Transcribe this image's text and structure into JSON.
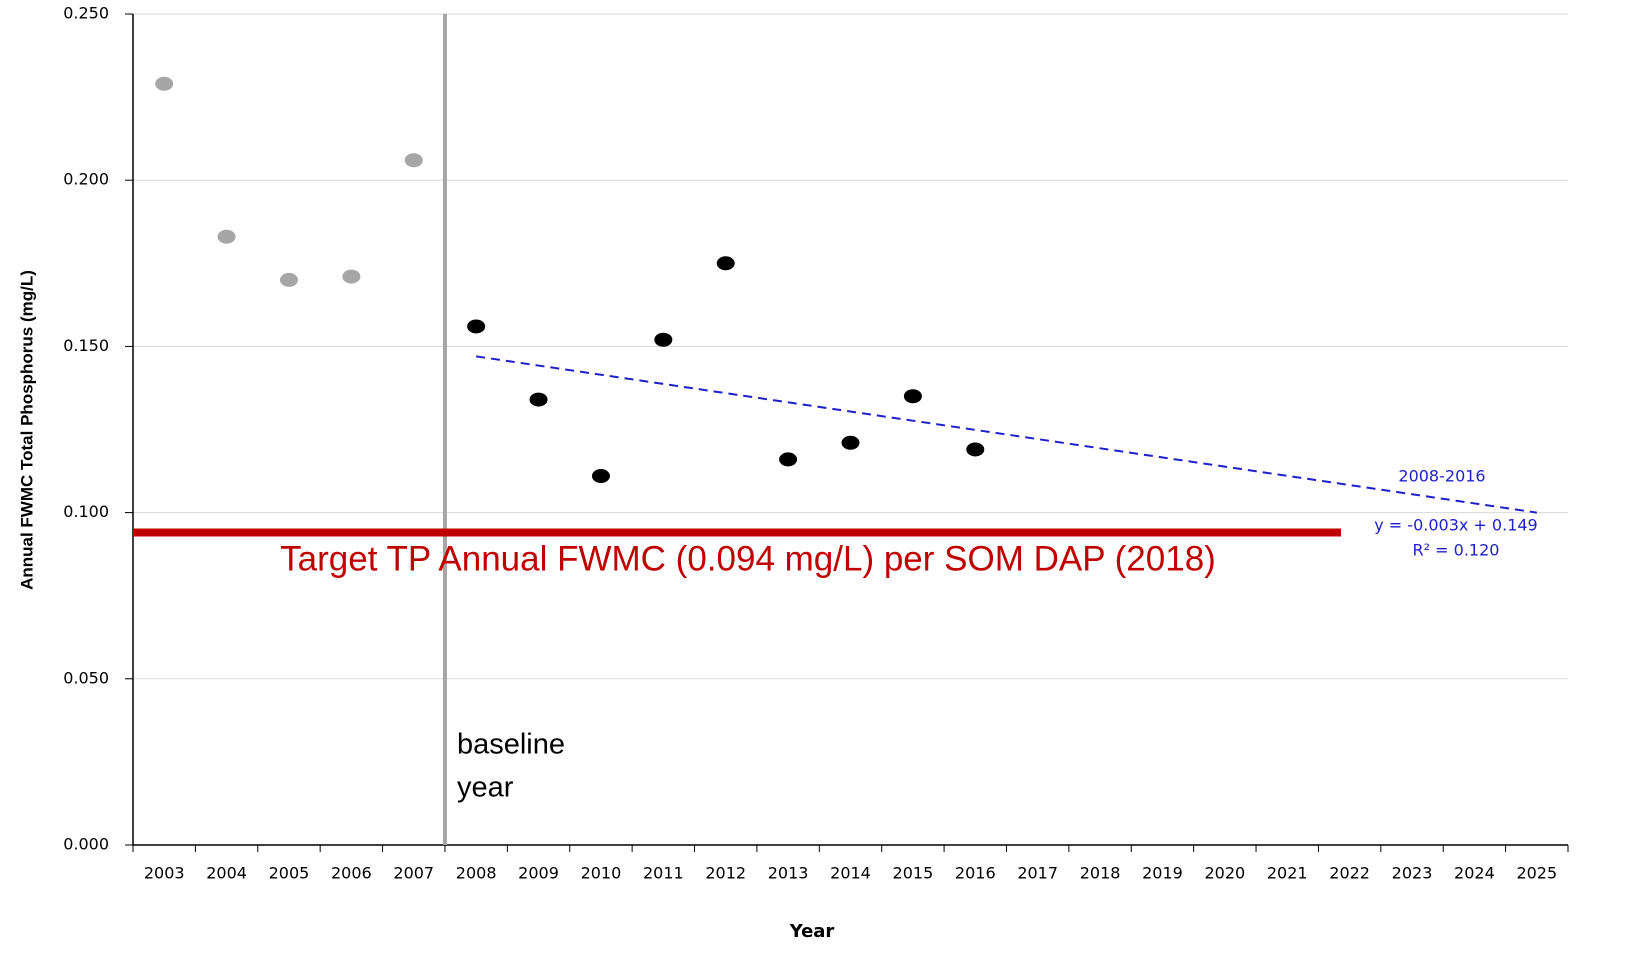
{
  "chart_data": {
    "type": "scatter",
    "y_axis_label": "Annual FWMC Total Phosphorus (mg/L)",
    "x_axis_label": "Year",
    "categories": [
      "2003",
      "2004",
      "2005",
      "2006",
      "2007",
      "2008",
      "2009",
      "2010",
      "2011",
      "2012",
      "2013",
      "2014",
      "2015",
      "2016",
      "2017",
      "2018",
      "2019",
      "2020",
      "2021",
      "2022",
      "2023",
      "2024",
      "2025"
    ],
    "series": [
      {
        "color": "#a6a6a6",
        "values": [
          0.229,
          0.183,
          0.17,
          0.171,
          0.206,
          null,
          null,
          null,
          null,
          null,
          null,
          null,
          null,
          null,
          null,
          null,
          null,
          null,
          null,
          null,
          null,
          null,
          null
        ]
      },
      {
        "color": "#000000",
        "values": [
          null,
          null,
          null,
          null,
          null,
          0.156,
          0.134,
          0.111,
          0.152,
          0.175,
          0.116,
          0.121,
          0.135,
          0.119,
          null,
          null,
          null,
          null,
          null,
          null,
          null,
          null,
          null
        ]
      }
    ],
    "ylim": [
      0,
      0.25
    ],
    "yticks": [
      {
        "value": 0,
        "label": "0.000"
      },
      {
        "value": 0.05,
        "label": "0.050"
      },
      {
        "value": 0.1,
        "label": "0.100"
      },
      {
        "value": 0.15,
        "label": "0.150"
      },
      {
        "value": 0.2,
        "label": "0.200"
      },
      {
        "value": 0.25,
        "label": "0.250"
      }
    ],
    "grid": true,
    "target": {
      "value": 0.094,
      "color": "#c00000",
      "label": "Target TP Annual FWMC (0.094 mg/L) per SOM DAP (2018)"
    },
    "baseline": {
      "after": "2007",
      "color": "#a6a6a6",
      "label": [
        "baseline",
        "year"
      ]
    },
    "trendline": {
      "color": "#1f1fcc",
      "x": [
        "2008",
        "2025"
      ],
      "values": [
        0.147,
        0.1
      ],
      "period": "2008-2016",
      "equation": "y = -0.003x + 0.149",
      "r2": "R² = 0.120"
    }
  }
}
